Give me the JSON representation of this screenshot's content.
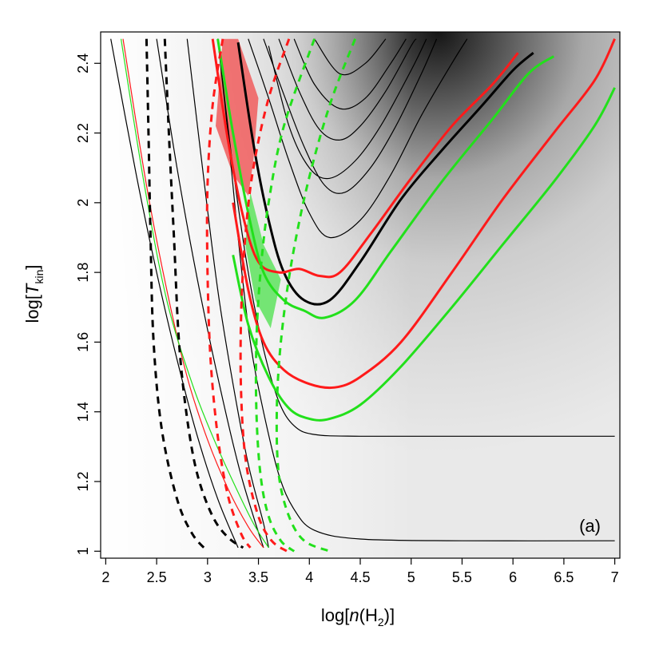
{
  "chart_data": {
    "type": "contour",
    "panel_label": "(a)",
    "xlabel": {
      "prefix": "log[",
      "var": "n",
      "mid": "(H",
      "sub": "2",
      "suffix": ")]"
    },
    "ylabel": {
      "prefix": "log[",
      "var": "T",
      "sub": "kin",
      "suffix": "]"
    },
    "xlim": [
      1.95,
      7.05
    ],
    "ylim": [
      0.98,
      2.49
    ],
    "xticks": [
      2,
      2.5,
      3,
      3.5,
      4,
      4.5,
      5,
      5.5,
      6,
      6.5,
      7
    ],
    "xtick_labels": [
      "2",
      "2.5",
      "3",
      "3.5",
      "4",
      "4.5",
      "5",
      "5.5",
      "6",
      "6.5",
      "7"
    ],
    "yticks": [
      1,
      1.2,
      1.4,
      1.6,
      1.8,
      2,
      2.2,
      2.4
    ],
    "ytick_labels": [
      "1",
      "1.2",
      "1.4",
      "1.6",
      "1.8",
      "2",
      "2.2",
      "2.4"
    ],
    "colors": {
      "black": "#000000",
      "red": "#ff1a1a",
      "green": "#22e01b",
      "red_fill": "#f06464",
      "green_fill": "#66e366"
    },
    "background": {
      "description": "greyscale likelihood map, darker = higher",
      "peak": [
        4.45,
        2.5
      ]
    },
    "series": [
      {
        "name": "contour-1",
        "color": "black",
        "width": 1.2,
        "dash": false,
        "points": [
          [
            2.05,
            2.47
          ],
          [
            2.3,
            2.08
          ],
          [
            2.5,
            1.8
          ],
          [
            2.7,
            1.55
          ],
          [
            2.9,
            1.33
          ],
          [
            3.1,
            1.15
          ],
          [
            3.3,
            1.01
          ]
        ]
      },
      {
        "name": "contour-2",
        "color": "black",
        "width": 1.2,
        "dash": false,
        "points": [
          [
            2.5,
            2.47
          ],
          [
            2.7,
            2.1
          ],
          [
            2.9,
            1.78
          ],
          [
            3.1,
            1.5
          ],
          [
            3.3,
            1.25
          ],
          [
            3.45,
            1.1
          ],
          [
            3.55,
            1.01
          ]
        ]
      },
      {
        "name": "contour-3",
        "color": "black",
        "width": 1.2,
        "dash": false,
        "points": [
          [
            2.8,
            2.47
          ],
          [
            2.95,
            2.1
          ],
          [
            3.1,
            1.75
          ],
          [
            3.25,
            1.48
          ],
          [
            3.4,
            1.25
          ],
          [
            3.55,
            1.08
          ],
          [
            3.6,
            1.01
          ]
        ]
      },
      {
        "name": "contour-4",
        "color": "black",
        "width": 1.2,
        "dash": false,
        "points": [
          [
            3.1,
            2.47
          ],
          [
            3.25,
            2.1
          ],
          [
            3.4,
            1.8
          ],
          [
            3.55,
            1.58
          ],
          [
            3.7,
            1.43
          ],
          [
            3.85,
            1.36
          ],
          [
            4.05,
            1.335
          ],
          [
            4.5,
            1.33
          ],
          [
            5.5,
            1.33
          ],
          [
            7.0,
            1.33
          ]
        ]
      },
      {
        "name": "contour-5",
        "color": "black",
        "width": 1.2,
        "dash": false,
        "points": [
          [
            3.1,
            2.47
          ],
          [
            3.2,
            2.2
          ],
          [
            3.3,
            1.9
          ],
          [
            3.42,
            1.6
          ],
          [
            3.55,
            1.4
          ],
          [
            3.7,
            1.22
          ],
          [
            3.85,
            1.12
          ],
          [
            4.05,
            1.06
          ],
          [
            4.5,
            1.035
          ],
          [
            5.5,
            1.03
          ],
          [
            7.0,
            1.03
          ]
        ]
      },
      {
        "name": "contour-6",
        "color": "black",
        "width": 1.2,
        "dash": false,
        "points": [
          [
            3.4,
            2.47
          ],
          [
            3.6,
            2.3
          ],
          [
            3.8,
            2.12
          ],
          [
            4.0,
            1.97
          ],
          [
            4.2,
            1.9
          ],
          [
            4.5,
            1.95
          ],
          [
            4.8,
            2.08
          ],
          [
            5.1,
            2.25
          ],
          [
            5.4,
            2.4
          ],
          [
            5.55,
            2.47
          ]
        ]
      },
      {
        "name": "contour-7",
        "color": "black",
        "width": 1.2,
        "dash": false,
        "points": [
          [
            3.55,
            2.47
          ],
          [
            3.75,
            2.31
          ],
          [
            3.95,
            2.16
          ],
          [
            4.15,
            2.05
          ],
          [
            4.35,
            2.03
          ],
          [
            4.6,
            2.1
          ],
          [
            4.85,
            2.22
          ],
          [
            5.1,
            2.37
          ],
          [
            5.25,
            2.47
          ]
        ]
      },
      {
        "name": "contour-8",
        "color": "black",
        "width": 1.2,
        "dash": false,
        "points": [
          [
            3.7,
            2.47
          ],
          [
            3.9,
            2.32
          ],
          [
            4.1,
            2.21
          ],
          [
            4.3,
            2.18
          ],
          [
            4.5,
            2.22
          ],
          [
            4.75,
            2.32
          ],
          [
            5.0,
            2.45
          ],
          [
            5.05,
            2.47
          ]
        ]
      },
      {
        "name": "contour-9",
        "color": "black",
        "width": 1.2,
        "dash": false,
        "points": [
          [
            3.85,
            2.47
          ],
          [
            4.05,
            2.34
          ],
          [
            4.3,
            2.27
          ],
          [
            4.55,
            2.3
          ],
          [
            4.8,
            2.4
          ],
          [
            4.95,
            2.47
          ]
        ]
      },
      {
        "name": "contour-10",
        "color": "black",
        "width": 1.2,
        "dash": false,
        "points": [
          [
            4.05,
            2.47
          ],
          [
            4.3,
            2.37
          ],
          [
            4.55,
            2.4
          ],
          [
            4.75,
            2.47
          ]
        ]
      },
      {
        "name": "contour-bold",
        "color": "black",
        "width": 3,
        "dash": false,
        "points": [
          [
            3.3,
            2.46
          ],
          [
            3.45,
            2.17
          ],
          [
            3.6,
            1.95
          ],
          [
            3.75,
            1.8
          ],
          [
            3.95,
            1.72
          ],
          [
            4.2,
            1.72
          ],
          [
            4.5,
            1.83
          ],
          [
            4.9,
            2.01
          ],
          [
            5.3,
            2.15
          ],
          [
            5.7,
            2.28
          ],
          [
            6.0,
            2.38
          ],
          [
            6.2,
            2.43
          ]
        ]
      },
      {
        "name": "contour-mid-1",
        "color": "black",
        "width": 1.2,
        "dash": false,
        "points": [
          [
            3.6,
            2.45
          ],
          [
            3.8,
            2.22
          ],
          [
            4.0,
            2.1
          ],
          [
            4.2,
            2.07
          ],
          [
            4.45,
            2.12
          ],
          [
            4.7,
            2.22
          ],
          [
            5.0,
            2.38
          ],
          [
            5.15,
            2.47
          ]
        ]
      },
      {
        "name": "red-solid-1",
        "color": "red",
        "width": 1.2,
        "dash": false,
        "points": [
          [
            2.17,
            2.47
          ],
          [
            2.4,
            2.05
          ],
          [
            2.6,
            1.75
          ],
          [
            2.8,
            1.5
          ],
          [
            3.0,
            1.32
          ],
          [
            3.2,
            1.18
          ],
          [
            3.4,
            1.07
          ],
          [
            3.55,
            1.01
          ]
        ]
      },
      {
        "name": "green-solid-1",
        "color": "green",
        "width": 1.2,
        "dash": false,
        "points": [
          [
            2.15,
            2.47
          ],
          [
            2.38,
            2.05
          ],
          [
            2.6,
            1.72
          ],
          [
            2.85,
            1.48
          ],
          [
            3.05,
            1.33
          ],
          [
            3.25,
            1.2
          ],
          [
            3.45,
            1.08
          ],
          [
            3.6,
            1.01
          ]
        ]
      },
      {
        "name": "red-solid-2",
        "color": "red",
        "width": 3,
        "dash": false,
        "points": [
          [
            3.05,
            2.47
          ],
          [
            3.2,
            2.18
          ],
          [
            3.35,
            1.96
          ],
          [
            3.5,
            1.83
          ],
          [
            3.7,
            1.8
          ],
          [
            3.9,
            1.81
          ],
          [
            4.1,
            1.79
          ],
          [
            4.3,
            1.8
          ],
          [
            4.6,
            1.91
          ],
          [
            5.0,
            2.07
          ],
          [
            5.4,
            2.22
          ],
          [
            5.8,
            2.34
          ],
          [
            6.05,
            2.43
          ]
        ]
      },
      {
        "name": "red-solid-3",
        "color": "red",
        "width": 3,
        "dash": false,
        "points": [
          [
            3.25,
            2.0
          ],
          [
            3.4,
            1.75
          ],
          [
            3.55,
            1.6
          ],
          [
            3.75,
            1.52
          ],
          [
            4.0,
            1.48
          ],
          [
            4.25,
            1.47
          ],
          [
            4.5,
            1.5
          ],
          [
            4.9,
            1.6
          ],
          [
            5.4,
            1.8
          ],
          [
            5.9,
            2.01
          ],
          [
            6.4,
            2.2
          ],
          [
            6.8,
            2.35
          ],
          [
            7.0,
            2.47
          ]
        ]
      },
      {
        "name": "green-solid-2",
        "color": "green",
        "width": 3,
        "dash": false,
        "points": [
          [
            3.1,
            2.47
          ],
          [
            3.25,
            2.2
          ],
          [
            3.4,
            1.97
          ],
          [
            3.55,
            1.8
          ],
          [
            3.75,
            1.72
          ],
          [
            3.95,
            1.69
          ],
          [
            4.15,
            1.67
          ],
          [
            4.45,
            1.72
          ],
          [
            4.8,
            1.86
          ],
          [
            5.3,
            2.06
          ],
          [
            5.8,
            2.24
          ],
          [
            6.15,
            2.37
          ],
          [
            6.4,
            2.42
          ]
        ]
      },
      {
        "name": "green-solid-3",
        "color": "green",
        "width": 3,
        "dash": false,
        "points": [
          [
            3.25,
            1.85
          ],
          [
            3.4,
            1.65
          ],
          [
            3.6,
            1.5
          ],
          [
            3.8,
            1.41
          ],
          [
            4.0,
            1.38
          ],
          [
            4.2,
            1.38
          ],
          [
            4.5,
            1.42
          ],
          [
            4.9,
            1.53
          ],
          [
            5.4,
            1.7
          ],
          [
            5.9,
            1.88
          ],
          [
            6.4,
            2.06
          ],
          [
            6.8,
            2.22
          ],
          [
            7.0,
            2.33
          ]
        ]
      },
      {
        "name": "black-dash-1",
        "color": "black",
        "width": 3,
        "dash": true,
        "points": [
          [
            2.4,
            2.47
          ],
          [
            2.42,
            2.2
          ],
          [
            2.44,
            1.9
          ],
          [
            2.47,
            1.6
          ],
          [
            2.55,
            1.35
          ],
          [
            2.7,
            1.15
          ],
          [
            2.85,
            1.05
          ],
          [
            3.0,
            1.0
          ]
        ]
      },
      {
        "name": "black-dash-2",
        "color": "black",
        "width": 3,
        "dash": true,
        "points": [
          [
            2.58,
            2.47
          ],
          [
            2.62,
            2.2
          ],
          [
            2.67,
            1.9
          ],
          [
            2.72,
            1.6
          ],
          [
            2.8,
            1.38
          ],
          [
            2.9,
            1.22
          ],
          [
            3.05,
            1.1
          ],
          [
            3.2,
            1.04
          ],
          [
            3.35,
            1.01
          ]
        ]
      },
      {
        "name": "red-dash-1",
        "color": "red",
        "width": 3,
        "dash": true,
        "points": [
          [
            3.15,
            2.47
          ],
          [
            3.05,
            2.28
          ],
          [
            3.0,
            2.05
          ],
          [
            3.0,
            1.8
          ],
          [
            3.03,
            1.55
          ],
          [
            3.1,
            1.33
          ],
          [
            3.2,
            1.16
          ],
          [
            3.33,
            1.05
          ],
          [
            3.42,
            1.01
          ]
        ]
      },
      {
        "name": "red-dash-2",
        "color": "red",
        "width": 3,
        "dash": true,
        "points": [
          [
            3.8,
            2.47
          ],
          [
            3.6,
            2.3
          ],
          [
            3.45,
            2.1
          ],
          [
            3.37,
            1.9
          ],
          [
            3.33,
            1.68
          ],
          [
            3.33,
            1.45
          ],
          [
            3.38,
            1.25
          ],
          [
            3.5,
            1.1
          ],
          [
            3.63,
            1.03
          ],
          [
            3.78,
            1.0
          ]
        ]
      },
      {
        "name": "green-dash-1",
        "color": "green",
        "width": 3,
        "dash": true,
        "points": [
          [
            4.05,
            2.47
          ],
          [
            3.75,
            2.22
          ],
          [
            3.6,
            2.0
          ],
          [
            3.52,
            1.8
          ],
          [
            3.48,
            1.6
          ],
          [
            3.48,
            1.4
          ],
          [
            3.52,
            1.22
          ],
          [
            3.6,
            1.1
          ],
          [
            3.72,
            1.03
          ],
          [
            3.85,
            1.0
          ]
        ]
      },
      {
        "name": "green-dash-2",
        "color": "green",
        "width": 3,
        "dash": true,
        "points": [
          [
            4.45,
            2.47
          ],
          [
            4.2,
            2.28
          ],
          [
            3.98,
            2.05
          ],
          [
            3.82,
            1.82
          ],
          [
            3.72,
            1.6
          ],
          [
            3.68,
            1.4
          ],
          [
            3.7,
            1.22
          ],
          [
            3.8,
            1.1
          ],
          [
            3.95,
            1.03
          ],
          [
            4.2,
            1.0
          ]
        ]
      }
    ],
    "regions": [
      {
        "name": "red-overlap-region",
        "fill": "red_fill",
        "points": [
          [
            3.15,
            2.47
          ],
          [
            3.3,
            2.47
          ],
          [
            3.5,
            2.3
          ],
          [
            3.45,
            2.12
          ],
          [
            3.4,
            2.02
          ],
          [
            3.25,
            2.08
          ],
          [
            3.08,
            2.22
          ]
        ]
      },
      {
        "name": "green-overlap-region",
        "fill": "green_fill",
        "points": [
          [
            3.42,
            2.03
          ],
          [
            3.55,
            1.88
          ],
          [
            3.72,
            1.78
          ],
          [
            3.62,
            1.64
          ],
          [
            3.47,
            1.72
          ],
          [
            3.37,
            1.88
          ]
        ]
      }
    ]
  }
}
